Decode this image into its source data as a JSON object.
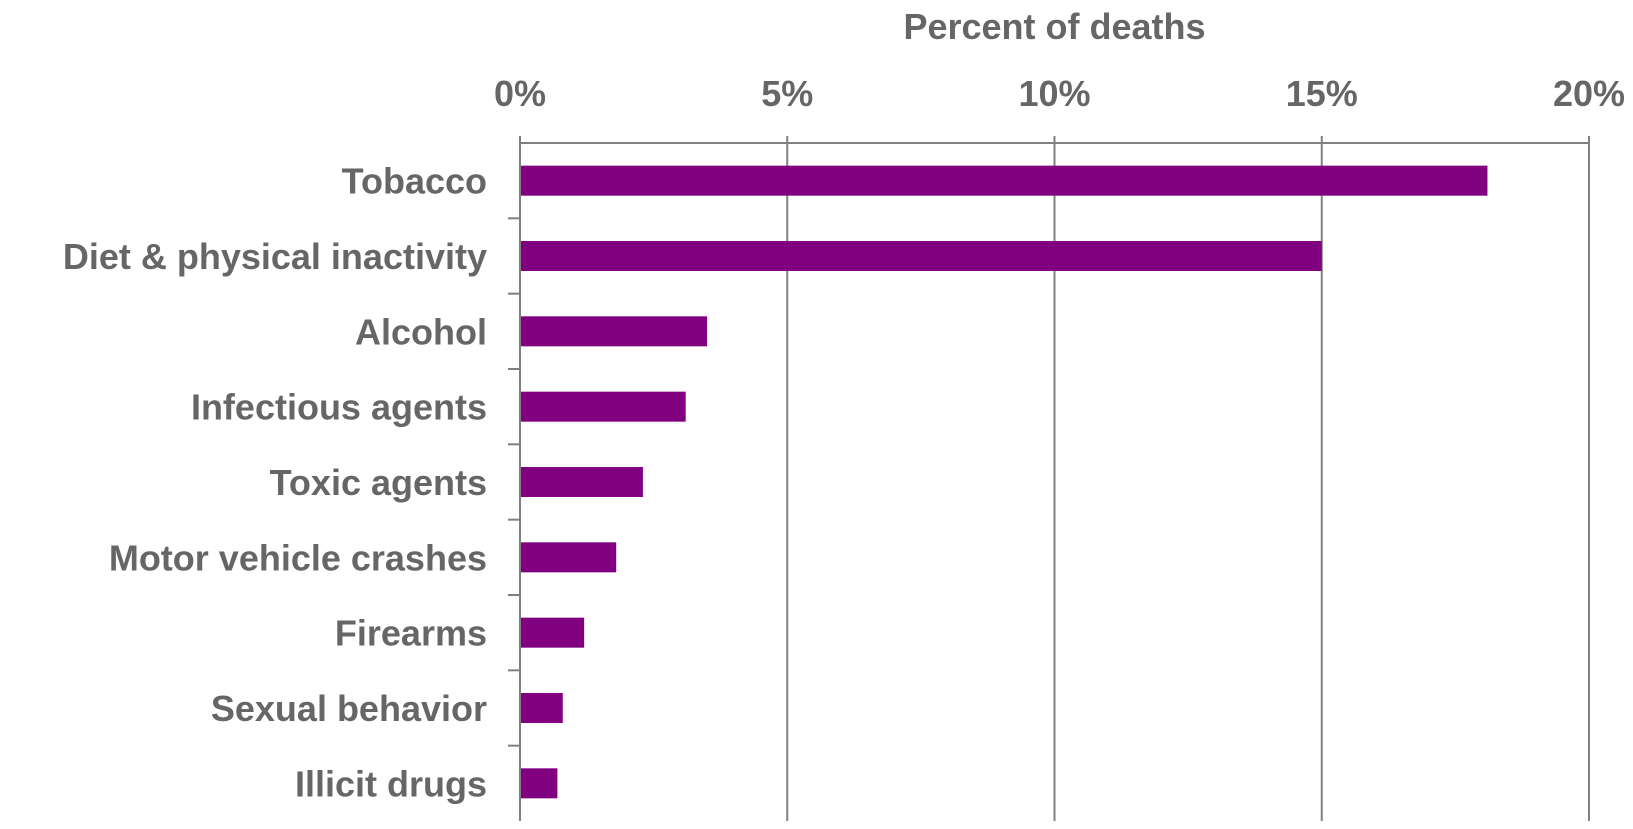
{
  "chart_data": {
    "type": "bar",
    "orientation": "horizontal",
    "title": "",
    "xlabel": "Percent of deaths",
    "ylabel": "",
    "xaxis_position": "top",
    "categories": [
      "Tobacco",
      "Diet & physical inactivity",
      "Alcohol",
      "Infectious agents",
      "Toxic agents",
      "Motor vehicle crashes",
      "Firearms",
      "Sexual behavior",
      "Illicit drugs"
    ],
    "values": [
      18.1,
      15.0,
      3.5,
      3.1,
      2.3,
      1.8,
      1.2,
      0.8,
      0.7
    ],
    "xlim": [
      0,
      20
    ],
    "xticks": [
      0,
      5,
      10,
      15,
      20
    ],
    "xtick_labels": [
      "0%",
      "5%",
      "10%",
      "15%",
      "20%"
    ],
    "grid": "vertical",
    "legend": "none",
    "colors": {
      "bar": "#800080",
      "text": "#666666",
      "axis": "#808080",
      "grid": "#808080"
    }
  }
}
